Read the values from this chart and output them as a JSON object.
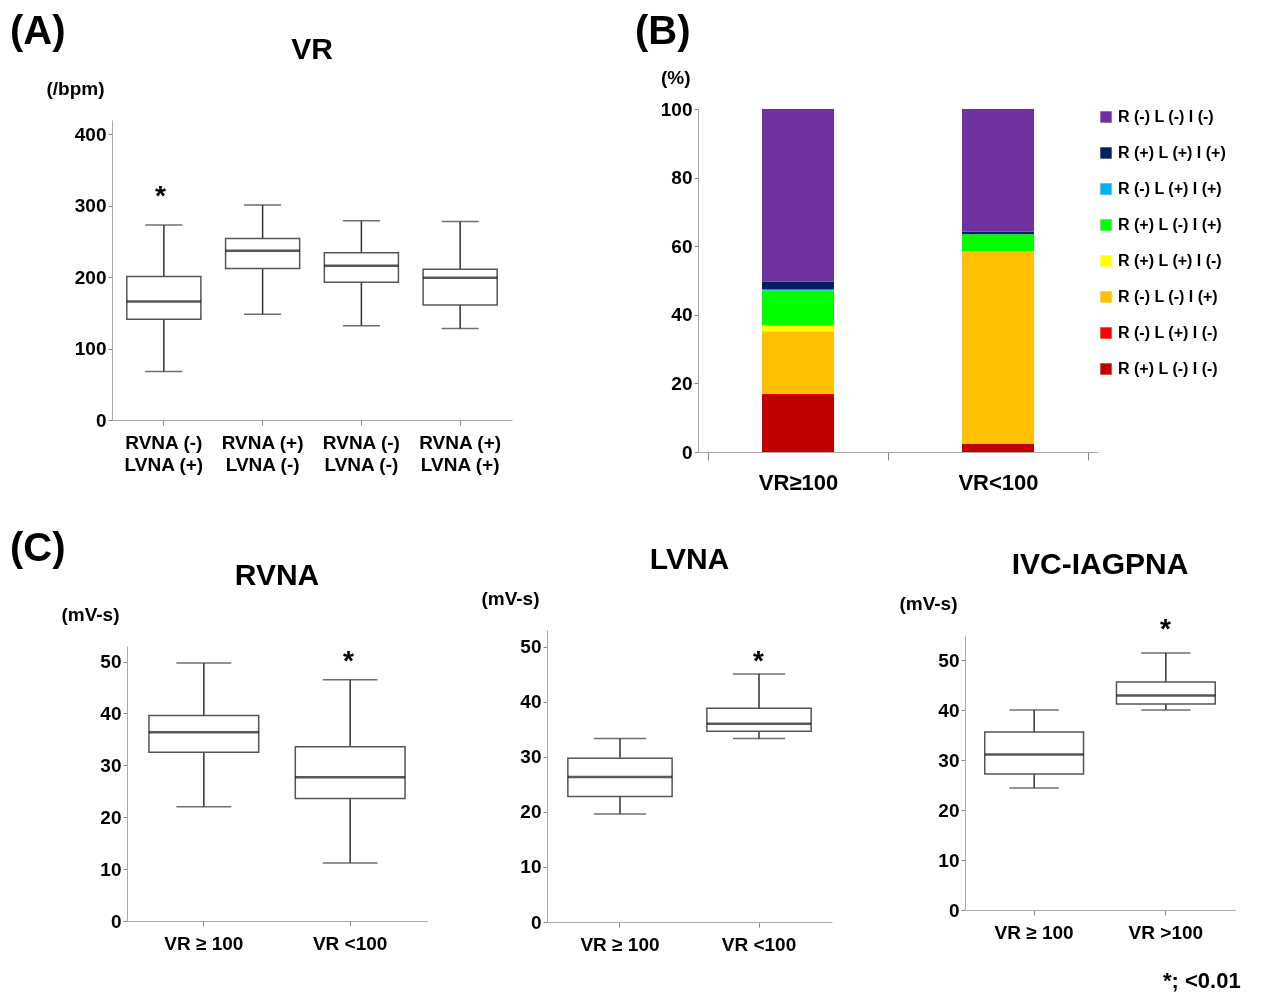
{
  "chart_data": [
    {
      "type": "box",
      "title": "VR",
      "ylabel": "(/bpm)",
      "categories": [
        "RVNA (-)\nLVNA (+)",
        "RVNA (+)\nLVNA (-)",
        "RVNA (-)\nLVNA (-)",
        "RVNA (+)\nLVNA (+)"
      ],
      "boxes": [
        {
          "low": 68,
          "q1": 141,
          "median": 166,
          "q3": 201,
          "high": 273
        },
        {
          "low": 148,
          "q1": 212,
          "median": 237,
          "q3": 254,
          "high": 301
        },
        {
          "low": 132,
          "q1": 193,
          "median": 216,
          "q3": 234,
          "high": 279
        },
        {
          "low": 128,
          "q1": 161,
          "median": 199,
          "q3": 211,
          "high": 278
        }
      ],
      "ylim": [
        0,
        420
      ],
      "yticks": [
        0,
        100,
        200,
        300,
        400
      ],
      "grid": false,
      "annotations": [
        "(A)",
        "*"
      ]
    },
    {
      "type": "bar",
      "stacked": true,
      "ylabel": "(%)",
      "categories": [
        "VR≥100",
        "VR<100"
      ],
      "series": [
        {
          "name": "R (+) L (-) I (-)",
          "color": "#c00000",
          "values": [
            16.6,
            2.4
          ]
        },
        {
          "name": "R (-) L (+) I (-)",
          "color": "#ff0000",
          "values": [
            0.4,
            0
          ]
        },
        {
          "name": "R (-) L (-) I (+)",
          "color": "#ffc000",
          "values": [
            18.2,
            56.1
          ]
        },
        {
          "name": "R (+) L (+) I (-)",
          "color": "#ffff00",
          "values": [
            1.7,
            0
          ]
        },
        {
          "name": "R (+) L (-) I (+)",
          "color": "#00ff00",
          "values": [
            10.2,
            5.0
          ]
        },
        {
          "name": "R (-) L (+) I (+)",
          "color": "#00b0f0",
          "values": [
            0.3,
            0
          ]
        },
        {
          "name": "R (+) L (+) I (+)",
          "color": "#002060",
          "values": [
            2.3,
            0.8
          ]
        },
        {
          "name": "R (-) L (-) I (-)",
          "color": "#7030a0",
          "values": [
            50.3,
            35.7
          ]
        }
      ],
      "ylim": [
        0,
        100
      ],
      "yticks": [
        0,
        20,
        40,
        60,
        80,
        100
      ],
      "grid": false,
      "legend": "right",
      "annotations": [
        "(B)"
      ]
    },
    {
      "type": "box",
      "title": "RVNA",
      "ylabel": "(mV-s)",
      "categories": [
        "VR ≥ 100",
        "VR <100"
      ],
      "boxes": [
        {
          "low": 22.0,
          "q1": 32.5,
          "median": 36.4,
          "q3": 39.6,
          "high": 49.7
        },
        {
          "low": 11.2,
          "q1": 23.6,
          "median": 27.7,
          "q3": 33.6,
          "high": 46.5
        }
      ],
      "ylim": [
        0,
        53
      ],
      "yticks": [
        0,
        10,
        20,
        30,
        40,
        50
      ],
      "grid": false,
      "annotations": [
        "(C)",
        "*"
      ]
    },
    {
      "type": "box",
      "title": "LVNA",
      "ylabel": "(mV-s)",
      "categories": [
        "VR ≥ 100",
        "VR <100"
      ],
      "boxes": [
        {
          "low": 19.6,
          "q1": 22.8,
          "median": 26.3,
          "q3": 29.7,
          "high": 33.3
        },
        {
          "low": 33.3,
          "q1": 34.6,
          "median": 36.0,
          "q3": 38.8,
          "high": 45.0
        }
      ],
      "ylim": [
        0,
        53
      ],
      "yticks": [
        0,
        10,
        20,
        30,
        40,
        50
      ],
      "grid": false,
      "annotations": [
        "*"
      ]
    },
    {
      "type": "box",
      "title": "IVC-IAGPNA",
      "ylabel": "(mV-s)",
      "categories": [
        "VR ≥ 100",
        "VR >100"
      ],
      "boxes": [
        {
          "low": 24.4,
          "q1": 27.2,
          "median": 31.1,
          "q3": 35.6,
          "high": 40.0
        },
        {
          "low": 40.0,
          "q1": 41.2,
          "median": 42.9,
          "q3": 45.6,
          "high": 51.4
        }
      ],
      "ylim": [
        0,
        55
      ],
      "yticks": [
        0,
        10,
        20,
        30,
        40,
        50
      ],
      "grid": false,
      "annotations": [
        "*",
        "*; <0.01"
      ]
    }
  ]
}
